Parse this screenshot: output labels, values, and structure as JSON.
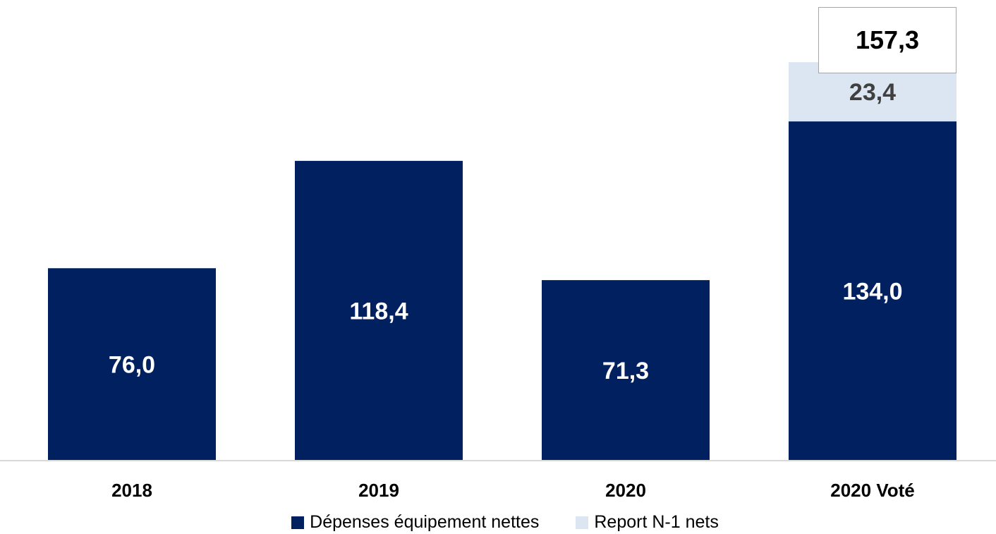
{
  "chart_data": {
    "type": "bar",
    "stacked": true,
    "categories": [
      "2018",
      "2019",
      "2020",
      "2020 Voté"
    ],
    "series": [
      {
        "name": "Dépenses équipement nettes",
        "values": [
          76.0,
          118.4,
          71.3,
          134.0
        ],
        "labels": [
          "76,0",
          "118,4",
          "71,3",
          "134,0"
        ],
        "color": "#002060",
        "label_color": "#ffffff"
      },
      {
        "name": "Report N-1 nets",
        "values": [
          0,
          0,
          0,
          23.4
        ],
        "labels": [
          "",
          "",
          "",
          "23,4"
        ],
        "color": "#dce6f2",
        "label_color": "#404040"
      }
    ],
    "total_label": "157,3",
    "ylim": [
      0,
      180
    ],
    "grid": false,
    "legend_position": "bottom"
  }
}
